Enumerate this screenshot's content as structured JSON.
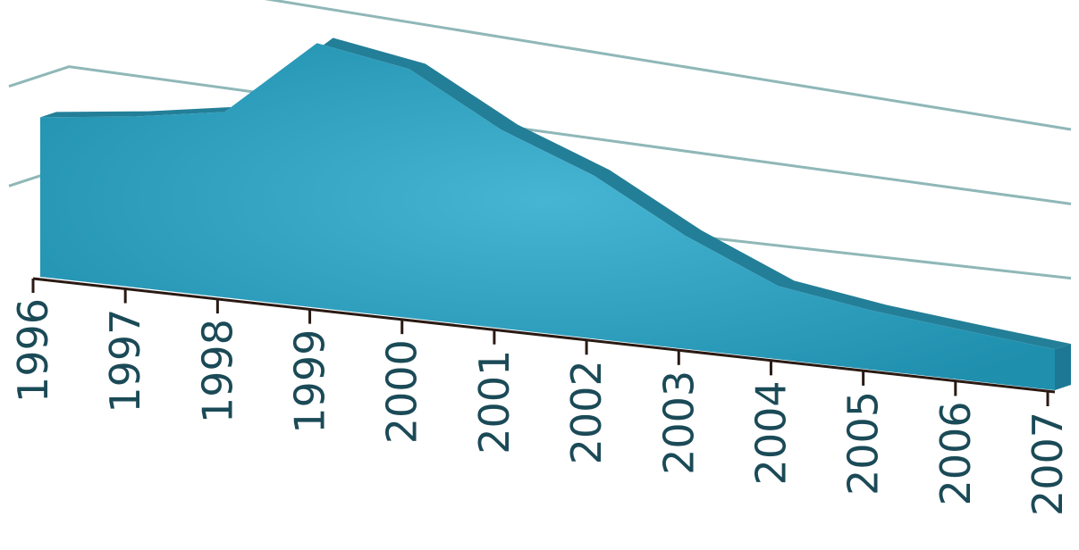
{
  "chart_data": {
    "type": "area",
    "style": "3d",
    "categories": [
      "1996",
      "1997",
      "1998",
      "1999",
      "2000",
      "2001",
      "2002",
      "2003",
      "2004",
      "2005",
      "2006",
      "2007"
    ],
    "series": [
      {
        "values": [
          160,
          175,
          195,
          285,
          275,
          225,
          190,
          135,
          90,
          75,
          65,
          55
        ]
      }
    ],
    "ylim": [
      0,
      300
    ],
    "grid": true,
    "legend": "none",
    "colors": {
      "area_front": "#2a9ec0",
      "area_front_highlight": "#45b4d2",
      "area_top": "#237f98",
      "area_side": "#1c7894",
      "gridline": "#8fb7b8",
      "floor": "#c9dfe2",
      "axis": "#2a1a14",
      "tick_label": "#1b4a57"
    }
  }
}
